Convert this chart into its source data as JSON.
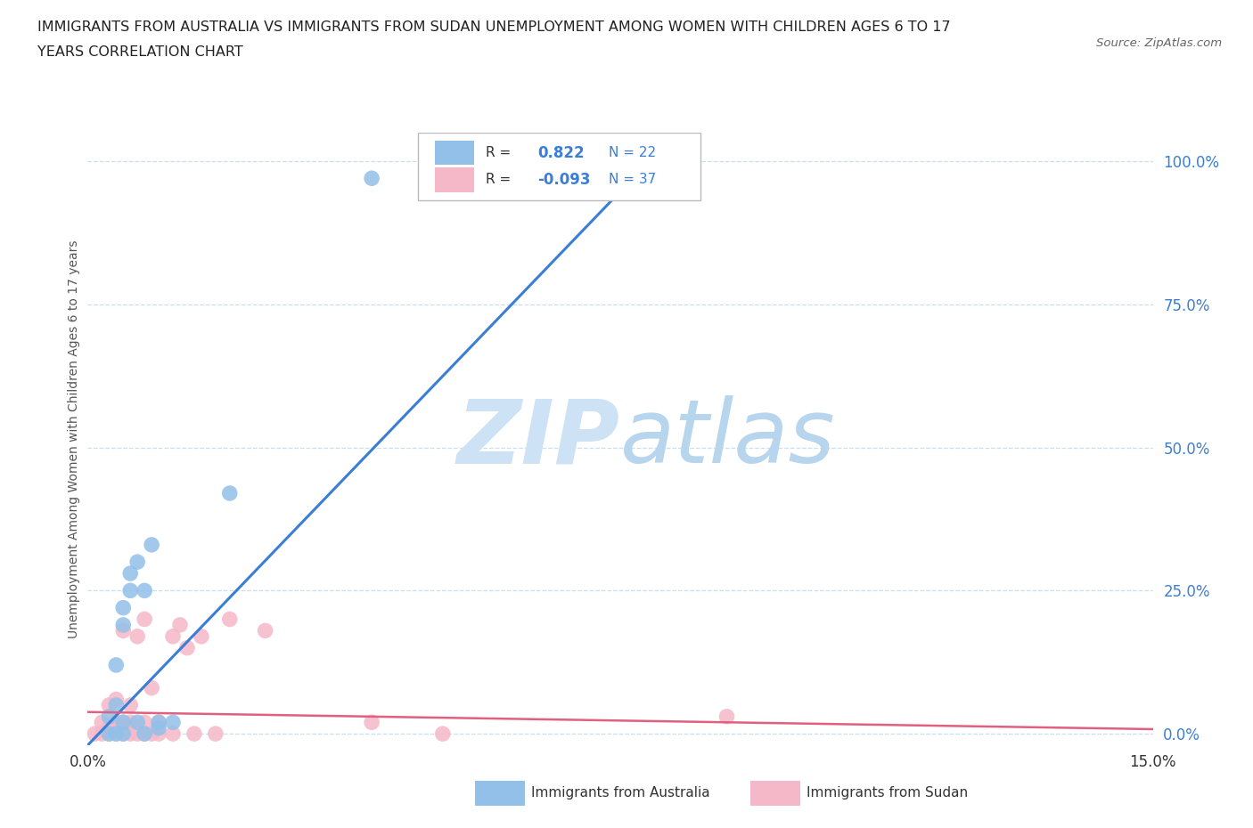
{
  "title_line1": "IMMIGRANTS FROM AUSTRALIA VS IMMIGRANTS FROM SUDAN UNEMPLOYMENT AMONG WOMEN WITH CHILDREN AGES 6 TO 17",
  "title_line2": "YEARS CORRELATION CHART",
  "source": "Source: ZipAtlas.com",
  "ylabel": "Unemployment Among Women with Children Ages 6 to 17 years",
  "xlim": [
    0.0,
    0.15
  ],
  "ylim": [
    -0.02,
    1.05
  ],
  "ytick_vals": [
    0.0,
    0.25,
    0.5,
    0.75,
    1.0
  ],
  "ytick_labels": [
    "0.0%",
    "25.0%",
    "50.0%",
    "75.0%",
    "100.0%"
  ],
  "xtick_vals": [
    0.0,
    0.05,
    0.1,
    0.15
  ],
  "xtick_labels": [
    "0.0%",
    "",
    "",
    "15.0%"
  ],
  "R_australia": 0.822,
  "N_australia": 22,
  "R_sudan": -0.093,
  "N_sudan": 37,
  "color_australia": "#92c0e8",
  "color_sudan": "#f5b8c8",
  "color_line_australia": "#3a7fd5",
  "color_line_sudan": "#e06080",
  "watermark_color": "#cde3f5",
  "watermark_color2": "#b8d5ee",
  "background_color": "#ffffff",
  "grid_color": "#c8dff0",
  "australia_scatter_x": [
    0.003,
    0.003,
    0.004,
    0.004,
    0.004,
    0.005,
    0.005,
    0.005,
    0.005,
    0.006,
    0.006,
    0.007,
    0.007,
    0.008,
    0.008,
    0.009,
    0.01,
    0.01,
    0.012,
    0.02,
    0.04,
    0.08
  ],
  "australia_scatter_y": [
    0.0,
    0.03,
    0.0,
    0.05,
    0.12,
    0.0,
    0.02,
    0.19,
    0.22,
    0.25,
    0.28,
    0.02,
    0.3,
    0.0,
    0.25,
    0.33,
    0.01,
    0.02,
    0.02,
    0.42,
    0.97,
    1.0
  ],
  "sudan_scatter_x": [
    0.001,
    0.002,
    0.002,
    0.003,
    0.003,
    0.003,
    0.004,
    0.004,
    0.004,
    0.005,
    0.005,
    0.005,
    0.005,
    0.006,
    0.006,
    0.006,
    0.007,
    0.007,
    0.008,
    0.008,
    0.008,
    0.009,
    0.009,
    0.01,
    0.01,
    0.012,
    0.012,
    0.013,
    0.014,
    0.015,
    0.016,
    0.018,
    0.02,
    0.025,
    0.04,
    0.05,
    0.09
  ],
  "sudan_scatter_y": [
    0.0,
    0.0,
    0.02,
    0.0,
    0.01,
    0.05,
    0.0,
    0.02,
    0.06,
    0.0,
    0.01,
    0.02,
    0.18,
    0.0,
    0.02,
    0.05,
    0.0,
    0.17,
    0.0,
    0.02,
    0.2,
    0.0,
    0.08,
    0.0,
    0.02,
    0.0,
    0.17,
    0.19,
    0.15,
    0.0,
    0.17,
    0.0,
    0.2,
    0.18,
    0.02,
    0.0,
    0.03
  ],
  "aus_line_x": [
    0.0,
    0.083
  ],
  "aus_line_y": [
    -0.02,
    1.05
  ],
  "sud_line_x": [
    0.0,
    0.15
  ],
  "sud_line_y": [
    0.038,
    0.008
  ],
  "legend_R_color": "#3a7fd5",
  "legend_text_color": "#333333"
}
